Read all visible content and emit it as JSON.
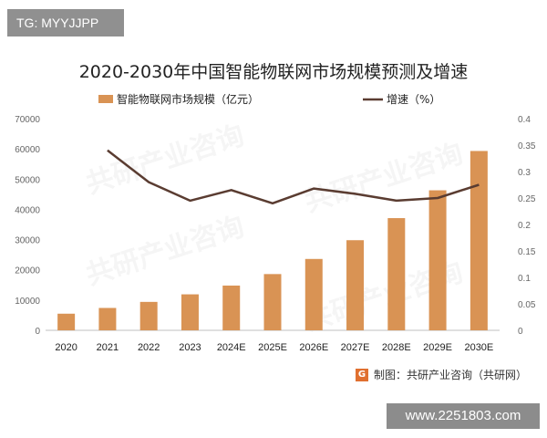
{
  "overlay": {
    "tg_label": "TG: MYYJJPP",
    "url_label": "www.2251803.com"
  },
  "watermark": "共研产业咨询",
  "source_note": "制图：共研产业咨询（共研网）",
  "colors": {
    "bar": "#d99354",
    "line": "#5a3c31",
    "axis": "#666666"
  },
  "chart_data": {
    "type": "bar",
    "title": "2020-2030年中国智能物联网市场规模预测及增速",
    "categories": [
      "2020",
      "2021",
      "2022",
      "2023",
      "2024E",
      "2025E",
      "2026E",
      "2027E",
      "2028E",
      "2029E",
      "2030E"
    ],
    "series": [
      {
        "name": "智能物联网市场规模（亿元）",
        "type": "bar",
        "axis": "left",
        "values": [
          5500,
          7400,
          9400,
          11900,
          14800,
          18600,
          23600,
          29800,
          37100,
          46300,
          59300
        ]
      },
      {
        "name": "增速（%）",
        "type": "line",
        "axis": "right",
        "values": [
          null,
          0.34,
          0.28,
          0.245,
          0.265,
          0.24,
          0.268,
          0.258,
          0.245,
          0.25,
          0.275
        ]
      }
    ],
    "y_left": {
      "min": 0,
      "max": 70000,
      "ticks": [
        0,
        10000,
        20000,
        30000,
        40000,
        50000,
        60000,
        70000
      ]
    },
    "y_right": {
      "min": 0,
      "max": 0.4,
      "ticks": [
        "0",
        "0.05",
        "0.1",
        "0.15",
        "0.2",
        "0.25",
        "0.3",
        "0.35",
        "0.4"
      ]
    },
    "legend": [
      "智能物联网市场规模（亿元）",
      "增速（%）"
    ]
  }
}
